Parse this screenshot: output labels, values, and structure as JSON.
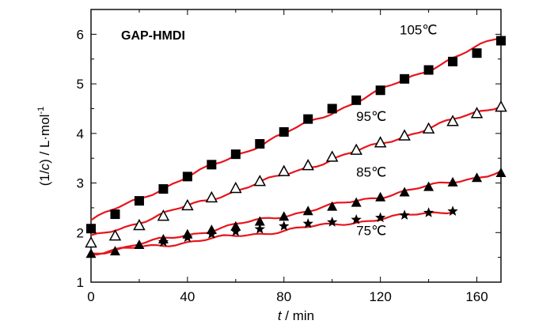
{
  "chart_data": {
    "type": "scatter",
    "title": "GAP-HMDI",
    "xlabel": {
      "italic": "t",
      "rest": " / min"
    },
    "ylabel": {
      "pre": "(1/",
      "italic": "c",
      "post": ") / L·mol",
      "sup": "-1"
    },
    "xlim": [
      0,
      170
    ],
    "ylim": [
      1,
      6.5
    ],
    "xticks": [
      0,
      40,
      80,
      120,
      160
    ],
    "yticks": [
      1,
      2,
      3,
      4,
      5,
      6
    ],
    "fit_color": "#e8141c",
    "marker_color": "#000000",
    "series": [
      {
        "name": "105℃",
        "marker": "filled-square",
        "x": [
          0,
          10,
          20,
          30,
          40,
          50,
          60,
          70,
          80,
          90,
          100,
          110,
          120,
          130,
          140,
          150,
          160,
          170
        ],
        "y": [
          2.08,
          2.37,
          2.64,
          2.88,
          3.13,
          3.37,
          3.58,
          3.79,
          4.03,
          4.29,
          4.5,
          4.67,
          4.87,
          5.1,
          5.28,
          5.45,
          5.62,
          5.87
        ],
        "fit": [
          2.25,
          5.95
        ]
      },
      {
        "name": "95℃",
        "marker": "open-triangle",
        "x": [
          0,
          10,
          20,
          30,
          40,
          50,
          60,
          70,
          80,
          90,
          100,
          110,
          120,
          130,
          140,
          150,
          160,
          170
        ],
        "y": [
          1.79,
          1.93,
          2.14,
          2.33,
          2.54,
          2.7,
          2.89,
          3.03,
          3.23,
          3.35,
          3.52,
          3.66,
          3.81,
          3.95,
          4.09,
          4.24,
          4.4,
          4.53
        ],
        "fit": [
          1.9,
          4.58
        ]
      },
      {
        "name": "85℃",
        "marker": "filled-triangle",
        "x": [
          0,
          10,
          20,
          30,
          40,
          50,
          60,
          70,
          80,
          90,
          100,
          110,
          120,
          130,
          140,
          150,
          160,
          170
        ],
        "y": [
          1.57,
          1.62,
          1.75,
          1.86,
          1.96,
          2.05,
          2.12,
          2.22,
          2.32,
          2.43,
          2.52,
          2.6,
          2.71,
          2.81,
          2.92,
          3.01,
          3.1,
          3.2
        ],
        "fit": [
          1.57,
          3.22
        ]
      },
      {
        "name": "75℃",
        "marker": "star",
        "x": [
          30,
          40,
          50,
          60,
          70,
          80,
          90,
          100,
          110,
          120,
          130,
          140,
          150
        ],
        "y": [
          1.81,
          1.9,
          1.97,
          2.02,
          2.07,
          2.13,
          2.18,
          2.21,
          2.26,
          2.3,
          2.35,
          2.4,
          2.43
        ],
        "fit_x": [
          0,
          150
        ],
        "fit": [
          1.58,
          2.45
        ]
      }
    ]
  }
}
